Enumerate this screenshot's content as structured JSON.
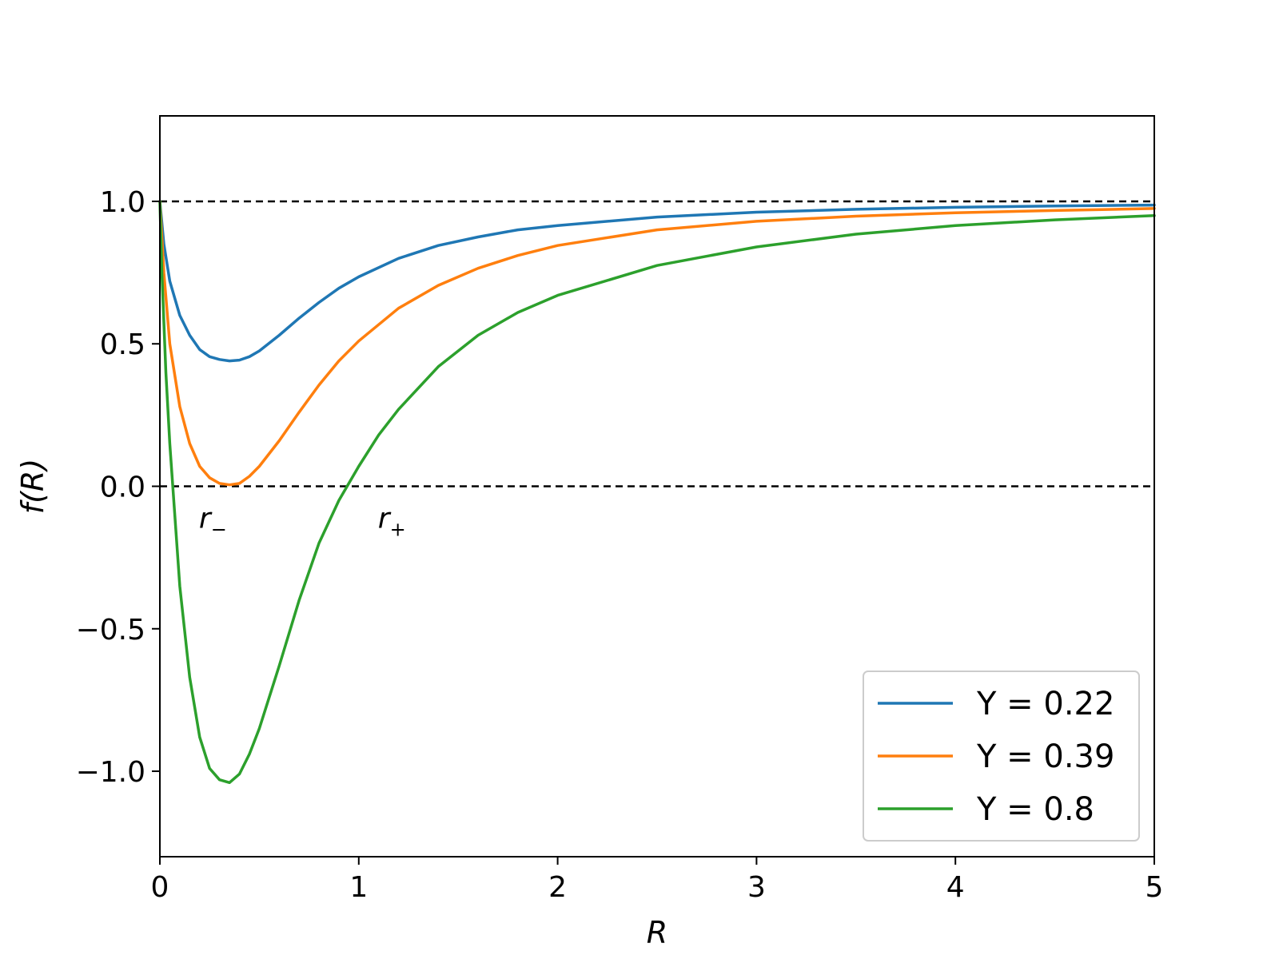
{
  "chart_data": {
    "type": "line",
    "xlabel": "R",
    "ylabel": "f(R)",
    "xlim": [
      0,
      5
    ],
    "ylim": [
      -1.3,
      1.3
    ],
    "xticks": [
      0,
      1,
      2,
      3,
      4,
      5
    ],
    "xtick_labels": [
      "0",
      "1",
      "2",
      "3",
      "4",
      "5"
    ],
    "yticks": [
      -1.0,
      -0.5,
      0.0,
      0.5,
      1.0
    ],
    "ytick_labels": [
      "−1.0",
      "−0.5",
      "0.0",
      "0.5",
      "1.0"
    ],
    "grid": false,
    "legend_position": "bottom-right",
    "reference_lines": [
      {
        "y": 1.0,
        "style": "dashed",
        "color": "#000000"
      },
      {
        "y": 0.0,
        "style": "dashed",
        "color": "#000000"
      }
    ],
    "annotations": [
      {
        "base": "r",
        "sub": "−",
        "x": 0.1,
        "y": -0.09
      },
      {
        "base": "r",
        "sub": "+",
        "x": 1.0,
        "y": -0.09
      }
    ],
    "series": [
      {
        "name": "Y = 0.22",
        "color": "#1f77b4",
        "x": [
          0.0,
          0.02,
          0.05,
          0.1,
          0.15,
          0.2,
          0.25,
          0.3,
          0.35,
          0.4,
          0.45,
          0.5,
          0.6,
          0.7,
          0.8,
          0.9,
          1.0,
          1.2,
          1.4,
          1.6,
          1.8,
          2.0,
          2.5,
          3.0,
          3.5,
          4.0,
          4.5,
          5.0
        ],
        "y": [
          1.0,
          0.85,
          0.72,
          0.6,
          0.53,
          0.48,
          0.455,
          0.445,
          0.44,
          0.443,
          0.455,
          0.475,
          0.53,
          0.59,
          0.645,
          0.695,
          0.735,
          0.8,
          0.845,
          0.875,
          0.9,
          0.915,
          0.945,
          0.962,
          0.972,
          0.979,
          0.984,
          0.987
        ]
      },
      {
        "name": "Y = 0.39",
        "color": "#ff7f0e",
        "x": [
          0.0,
          0.02,
          0.05,
          0.1,
          0.15,
          0.2,
          0.25,
          0.3,
          0.35,
          0.4,
          0.45,
          0.5,
          0.6,
          0.7,
          0.8,
          0.9,
          1.0,
          1.2,
          1.4,
          1.6,
          1.8,
          2.0,
          2.5,
          3.0,
          3.5,
          4.0,
          4.5,
          5.0
        ],
        "y": [
          1.0,
          0.75,
          0.5,
          0.28,
          0.15,
          0.07,
          0.03,
          0.01,
          0.005,
          0.01,
          0.035,
          0.07,
          0.16,
          0.26,
          0.355,
          0.44,
          0.51,
          0.625,
          0.705,
          0.765,
          0.81,
          0.845,
          0.9,
          0.93,
          0.948,
          0.96,
          0.968,
          0.975
        ]
      },
      {
        "name": "Y = 0.8",
        "color": "#2ca02c",
        "x": [
          0.0,
          0.01,
          0.03,
          0.05,
          0.08,
          0.1,
          0.15,
          0.2,
          0.25,
          0.3,
          0.35,
          0.4,
          0.45,
          0.5,
          0.6,
          0.7,
          0.8,
          0.9,
          1.0,
          1.1,
          1.2,
          1.4,
          1.6,
          1.8,
          2.0,
          2.5,
          3.0,
          3.5,
          4.0,
          4.5,
          5.0
        ],
        "y": [
          1.0,
          0.75,
          0.4,
          0.15,
          -0.15,
          -0.35,
          -0.67,
          -0.88,
          -0.99,
          -1.03,
          -1.04,
          -1.01,
          -0.94,
          -0.85,
          -0.63,
          -0.4,
          -0.2,
          -0.05,
          0.07,
          0.18,
          0.27,
          0.42,
          0.53,
          0.61,
          0.67,
          0.775,
          0.84,
          0.885,
          0.915,
          0.935,
          0.95
        ]
      }
    ]
  }
}
